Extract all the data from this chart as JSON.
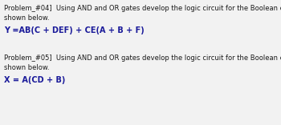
{
  "background_color": "#f2f2f2",
  "body_color": "#1a1a1a",
  "eq_color": "#1a1a9a",
  "prob04_line1": "Problem_#04]  Using AND and OR gates develop the logic circuit for the Boolean equation",
  "prob04_line2": "shown below.",
  "prob04_eq": "Y =AB(C + DEF) + CE(A + B + F)",
  "prob05_line1": "Problem_#05]  Using AND and OR gates develop the logic circuit for the Boolean equation",
  "prob05_line2": "shown below.",
  "prob05_eq": "X = A(CD + B)",
  "header_fontsize": 6.0,
  "eq_fontsize": 7.0,
  "fig_width": 3.5,
  "fig_height": 1.56,
  "dpi": 100
}
